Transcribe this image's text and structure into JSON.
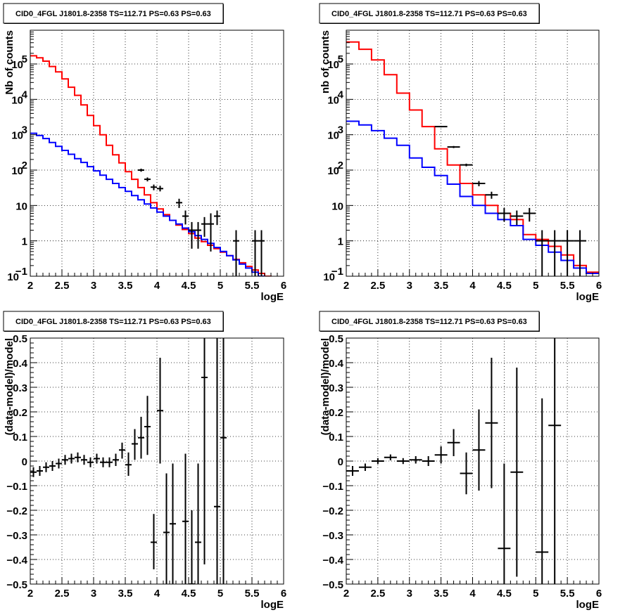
{
  "chart_data": [
    {
      "type": "line",
      "title": "CID0_4FGL J1801.8-2358 TS=112.71 PS=0.63 PS=0.63",
      "xlabel": "logE",
      "ylabel": "Nb of counts",
      "xlim": [
        2,
        6
      ],
      "ylim": [
        0.1,
        900000
      ],
      "yscale": "log",
      "grid": true,
      "xticks": [
        "2",
        "2.5",
        "3",
        "3.5",
        "4",
        "4.5",
        "5",
        "5.5",
        "6"
      ],
      "yticks": [
        {
          "v": 0.1,
          "base": "10",
          "exp": "−1"
        },
        {
          "v": 1,
          "base": "1",
          "exp": ""
        },
        {
          "v": 10,
          "base": "10",
          "exp": ""
        },
        {
          "v": 100,
          "base": "10",
          "exp": "2"
        },
        {
          "v": 1000,
          "base": "10",
          "exp": "3"
        },
        {
          "v": 10000,
          "base": "10",
          "exp": "4"
        },
        {
          "v": 100000,
          "base": "10",
          "exp": "5"
        }
      ],
      "step_series": [
        {
          "color": "#ff0000",
          "edges": [
            2.0,
            2.1,
            2.2,
            2.3,
            2.4,
            2.5,
            2.6,
            2.7,
            2.8,
            2.9,
            3.0,
            3.1,
            3.2,
            3.3,
            3.4,
            3.5,
            3.6,
            3.7,
            3.8,
            3.9,
            4.0,
            4.1,
            4.2,
            4.3,
            4.4,
            4.5,
            4.6,
            4.7,
            4.8,
            4.9,
            5.0,
            5.1,
            5.2,
            5.3,
            5.4,
            5.5,
            5.6,
            5.7,
            5.8,
            5.9,
            6.0
          ],
          "values": [
            170000,
            150000,
            120000,
            85000,
            60000,
            38000,
            22000,
            13000,
            7000,
            3500,
            1800,
            1000,
            500,
            270,
            160,
            90,
            55,
            32,
            20,
            12,
            8,
            5.5,
            3.8,
            2.8,
            2.1,
            1.6,
            1.2,
            0.95,
            0.75,
            0.6,
            0.48,
            0.38,
            0.3,
            0.24,
            0.19,
            0.15,
            0.12,
            0.1,
            0.08,
            0.06
          ]
        },
        {
          "color": "#0000ff",
          "edges": [
            2.0,
            2.1,
            2.2,
            2.3,
            2.4,
            2.5,
            2.6,
            2.7,
            2.8,
            2.9,
            3.0,
            3.1,
            3.2,
            3.3,
            3.4,
            3.5,
            3.6,
            3.7,
            3.8,
            3.9,
            4.0,
            4.1,
            4.2,
            4.3,
            4.4,
            4.5,
            4.6,
            4.7,
            4.8,
            4.9,
            5.0,
            5.1,
            5.2,
            5.3,
            5.4,
            5.5,
            5.6,
            5.7,
            5.8,
            5.9,
            6.0
          ],
          "values": [
            1100,
            950,
            780,
            600,
            470,
            360,
            280,
            210,
            165,
            125,
            95,
            72,
            55,
            42,
            32,
            25,
            19,
            14.5,
            11,
            8.5,
            6.5,
            5,
            3.8,
            3,
            2.3,
            1.8,
            1.4,
            1.1,
            0.85,
            0.65,
            0.5,
            0.38,
            0.29,
            0.22,
            0.17,
            0.13,
            0.1,
            0.08,
            0.06,
            0.05
          ]
        }
      ],
      "points": [
        {
          "x": 3.75,
          "y": 100,
          "xerr": 0.05,
          "ylo": 90,
          "yhi": 110
        },
        {
          "x": 3.85,
          "y": 55,
          "xerr": 0.05,
          "ylo": 48,
          "yhi": 62
        },
        {
          "x": 3.95,
          "y": 33,
          "xerr": 0.05,
          "ylo": 27,
          "yhi": 39
        },
        {
          "x": 4.05,
          "y": 30,
          "xerr": 0.05,
          "ylo": 25,
          "yhi": 36
        },
        {
          "x": 4.35,
          "y": 12,
          "xerr": 0.05,
          "ylo": 8.5,
          "yhi": 15.5
        },
        {
          "x": 4.45,
          "y": 5,
          "xerr": 0.05,
          "ylo": 2.9,
          "yhi": 7.2
        },
        {
          "x": 4.55,
          "y": 2,
          "xerr": 0.05,
          "ylo": 0.6,
          "yhi": 3.4
        },
        {
          "x": 4.65,
          "y": 2,
          "xerr": 0.05,
          "ylo": 0.6,
          "yhi": 3.4
        },
        {
          "x": 4.75,
          "y": 3,
          "xerr": 0.05,
          "ylo": 1.3,
          "yhi": 4.7
        },
        {
          "x": 4.85,
          "y": 3,
          "xerr": 0.05,
          "ylo": 0.5,
          "yhi": 6
        },
        {
          "x": 4.95,
          "y": 5,
          "xerr": 0.05,
          "ylo": 2.8,
          "yhi": 7.2
        },
        {
          "x": 5.25,
          "y": 1,
          "xerr": 0.05,
          "ylo": 0.1,
          "yhi": 2
        },
        {
          "x": 5.55,
          "y": 1,
          "xerr": 0.05,
          "ylo": 0.1,
          "yhi": 2
        },
        {
          "x": 5.65,
          "y": 1,
          "xerr": 0.05,
          "ylo": 0.1,
          "yhi": 2
        }
      ]
    },
    {
      "type": "line",
      "title": "CID0_4FGL J1801.8-2358 TS=112.71 PS=0.63 PS=0.63",
      "xlabel": "logE",
      "ylabel": "nb of counts",
      "xlim": [
        2,
        6
      ],
      "ylim": [
        0.1,
        900000
      ],
      "yscale": "log",
      "grid": true,
      "xticks": [
        "2",
        "2.5",
        "3",
        "3.5",
        "4",
        "4.5",
        "5",
        "5.5",
        "6"
      ],
      "yticks": [
        {
          "v": 0.1,
          "base": "10",
          "exp": "−1"
        },
        {
          "v": 1,
          "base": "1",
          "exp": ""
        },
        {
          "v": 10,
          "base": "10",
          "exp": ""
        },
        {
          "v": 100,
          "base": "10",
          "exp": "2"
        },
        {
          "v": 1000,
          "base": "10",
          "exp": "3"
        },
        {
          "v": 10000,
          "base": "10",
          "exp": "4"
        },
        {
          "v": 100000,
          "base": "10",
          "exp": "5"
        }
      ],
      "step_series": [
        {
          "color": "#ff0000",
          "edges": [
            2.0,
            2.2,
            2.4,
            2.6,
            2.8,
            3.0,
            3.2,
            3.4,
            3.6,
            3.8,
            4.0,
            4.2,
            4.4,
            4.6,
            4.8,
            5.0,
            5.2,
            5.4,
            5.6,
            5.8,
            6.0
          ],
          "values": [
            420000,
            260000,
            130000,
            50000,
            15000,
            5000,
            1700,
            400,
            140,
            42,
            20,
            10,
            6,
            4,
            1.5,
            1.1,
            0.7,
            0.4,
            0.2,
            0.13
          ]
        },
        {
          "color": "#0000ff",
          "edges": [
            2.0,
            2.2,
            2.4,
            2.6,
            2.8,
            3.0,
            3.2,
            3.4,
            3.6,
            3.8,
            4.0,
            4.2,
            4.4,
            4.6,
            4.8,
            5.0,
            5.2,
            5.4,
            5.6,
            5.8,
            6.0
          ],
          "values": [
            2400,
            1900,
            1300,
            800,
            500,
            220,
            120,
            70,
            40,
            18,
            10,
            6,
            4,
            2.7,
            1.1,
            0.75,
            0.48,
            0.28,
            0.17,
            0.12
          ]
        }
      ],
      "points": [
        {
          "x": 3.5,
          "y": 1700,
          "xerr": 0.1,
          "ylo": 1620,
          "yhi": 1780
        },
        {
          "x": 3.7,
          "y": 450,
          "xerr": 0.1,
          "ylo": 420,
          "yhi": 480
        },
        {
          "x": 3.9,
          "y": 140,
          "xerr": 0.1,
          "ylo": 128,
          "yhi": 152
        },
        {
          "x": 4.1,
          "y": 42,
          "xerr": 0.1,
          "ylo": 35,
          "yhi": 49
        },
        {
          "x": 4.3,
          "y": 20,
          "xerr": 0.1,
          "ylo": 15.5,
          "yhi": 24.5
        },
        {
          "x": 4.5,
          "y": 6,
          "xerr": 0.1,
          "ylo": 3.5,
          "yhi": 8.5
        },
        {
          "x": 4.7,
          "y": 5,
          "xerr": 0.1,
          "ylo": 2.8,
          "yhi": 7.2
        },
        {
          "x": 4.9,
          "y": 6,
          "xerr": 0.1,
          "ylo": 3.5,
          "yhi": 8.5
        },
        {
          "x": 5.1,
          "y": 1,
          "xerr": 0.1,
          "ylo": 0.1,
          "yhi": 2
        },
        {
          "x": 5.3,
          "y": 1,
          "xerr": 0.1,
          "ylo": 0.1,
          "yhi": 2
        },
        {
          "x": 5.5,
          "y": 1,
          "xerr": 0.1,
          "ylo": 0.1,
          "yhi": 2
        },
        {
          "x": 5.7,
          "y": 1,
          "xerr": 0.1,
          "ylo": 0.1,
          "yhi": 2
        }
      ]
    },
    {
      "type": "scatter",
      "title": "CID0_4FGL J1801.8-2358 TS=112.71 PS=0.63 PS=0.63",
      "xlabel": "logE",
      "ylabel": "(data-model)/model",
      "xlim": [
        2,
        6
      ],
      "ylim": [
        -0.5,
        0.5
      ],
      "grid": true,
      "xticks": [
        "2",
        "2.5",
        "3",
        "3.5",
        "4",
        "4.5",
        "5",
        "5.5",
        "6"
      ],
      "yticks": [
        "−0.5",
        "−0.4",
        "−0.3",
        "−0.2",
        "−0.1",
        "0",
        "0.1",
        "0.2",
        "0.3",
        "0.4",
        "0.5"
      ],
      "points": [
        {
          "x": 2.05,
          "y": -0.045,
          "xerr": 0.05,
          "ylo": -0.065,
          "yhi": -0.025
        },
        {
          "x": 2.15,
          "y": -0.04,
          "xerr": 0.05,
          "ylo": -0.06,
          "yhi": -0.02
        },
        {
          "x": 2.25,
          "y": -0.025,
          "xerr": 0.05,
          "ylo": -0.045,
          "yhi": -0.005
        },
        {
          "x": 2.35,
          "y": -0.02,
          "xerr": 0.05,
          "ylo": -0.04,
          "yhi": 0.0
        },
        {
          "x": 2.45,
          "y": -0.01,
          "xerr": 0.05,
          "ylo": -0.03,
          "yhi": 0.01
        },
        {
          "x": 2.55,
          "y": 0.005,
          "xerr": 0.05,
          "ylo": -0.015,
          "yhi": 0.025
        },
        {
          "x": 2.65,
          "y": 0.01,
          "xerr": 0.05,
          "ylo": -0.01,
          "yhi": 0.03
        },
        {
          "x": 2.75,
          "y": 0.015,
          "xerr": 0.05,
          "ylo": -0.005,
          "yhi": 0.035
        },
        {
          "x": 2.85,
          "y": 0.005,
          "xerr": 0.05,
          "ylo": -0.015,
          "yhi": 0.025
        },
        {
          "x": 2.95,
          "y": -0.005,
          "xerr": 0.05,
          "ylo": -0.025,
          "yhi": 0.015
        },
        {
          "x": 3.05,
          "y": 0.01,
          "xerr": 0.05,
          "ylo": -0.01,
          "yhi": 0.03
        },
        {
          "x": 3.15,
          "y": -0.005,
          "xerr": 0.05,
          "ylo": -0.025,
          "yhi": 0.015
        },
        {
          "x": 3.25,
          "y": -0.005,
          "xerr": 0.05,
          "ylo": -0.025,
          "yhi": 0.015
        },
        {
          "x": 3.35,
          "y": 0.005,
          "xerr": 0.05,
          "ylo": -0.02,
          "yhi": 0.03
        },
        {
          "x": 3.45,
          "y": 0.045,
          "xerr": 0.05,
          "ylo": 0.01,
          "yhi": 0.075
        },
        {
          "x": 3.55,
          "y": -0.015,
          "xerr": 0.05,
          "ylo": -0.06,
          "yhi": 0.035
        },
        {
          "x": 3.65,
          "y": 0.07,
          "xerr": 0.05,
          "ylo": 0.005,
          "yhi": 0.13
        },
        {
          "x": 3.75,
          "y": 0.095,
          "xerr": 0.05,
          "ylo": 0.01,
          "yhi": 0.18
        },
        {
          "x": 3.85,
          "y": 0.14,
          "xerr": 0.05,
          "ylo": 0.025,
          "yhi": 0.265
        },
        {
          "x": 3.95,
          "y": -0.33,
          "xerr": 0.05,
          "ylo": -0.44,
          "yhi": -0.215
        },
        {
          "x": 4.05,
          "y": 0.205,
          "xerr": 0.05,
          "ylo": -0.01,
          "yhi": 0.42
        },
        {
          "x": 4.15,
          "y": -0.29,
          "xerr": 0.05,
          "ylo": -0.5,
          "yhi": -0.05
        },
        {
          "x": 4.25,
          "y": -0.255,
          "xerr": 0.05,
          "ylo": -0.5,
          "yhi": -0.01
        },
        {
          "x": 4.45,
          "y": -0.245,
          "xerr": 0.05,
          "ylo": -0.5,
          "yhi": 0.03
        },
        {
          "x": 4.55,
          "y": -0.5,
          "xerr": 0.05,
          "ylo": -0.5,
          "yhi": -0.2
        },
        {
          "x": 4.65,
          "y": -0.33,
          "xerr": 0.05,
          "ylo": -0.5,
          "yhi": -0.01
        },
        {
          "x": 4.75,
          "y": 0.34,
          "xerr": 0.05,
          "ylo": -0.42,
          "yhi": 0.5
        },
        {
          "x": 4.95,
          "y": -0.185,
          "xerr": 0.05,
          "ylo": -0.5,
          "yhi": 0.5
        },
        {
          "x": 5.05,
          "y": 0.095,
          "xerr": 0.05,
          "ylo": -0.5,
          "yhi": 0.5
        }
      ]
    },
    {
      "type": "scatter",
      "title": "CID0_4FGL J1801.8-2358 TS=112.71 PS=0.63 PS=0.63",
      "xlabel": "logE",
      "ylabel": "(data-model)/model",
      "xlim": [
        2,
        6
      ],
      "ylim": [
        -0.5,
        0.5
      ],
      "grid": true,
      "xticks": [
        "2",
        "2.5",
        "3",
        "3.5",
        "4",
        "4.5",
        "5",
        "5.5",
        "6"
      ],
      "yticks": [
        "−0.5",
        "−0.4",
        "−0.3",
        "−0.2",
        "−0.1",
        "0",
        "0.1",
        "0.2",
        "0.3",
        "0.4",
        "0.5"
      ],
      "points": [
        {
          "x": 2.1,
          "y": -0.04,
          "xerr": 0.1,
          "ylo": -0.06,
          "yhi": -0.02
        },
        {
          "x": 2.3,
          "y": -0.025,
          "xerr": 0.1,
          "ylo": -0.04,
          "yhi": -0.01
        },
        {
          "x": 2.5,
          "y": 0.0,
          "xerr": 0.1,
          "ylo": -0.012,
          "yhi": 0.012
        },
        {
          "x": 2.7,
          "y": 0.015,
          "xerr": 0.1,
          "ylo": 0.003,
          "yhi": 0.027
        },
        {
          "x": 2.9,
          "y": 0.0,
          "xerr": 0.1,
          "ylo": -0.012,
          "yhi": 0.012
        },
        {
          "x": 3.1,
          "y": 0.005,
          "xerr": 0.1,
          "ylo": -0.01,
          "yhi": 0.02
        },
        {
          "x": 3.3,
          "y": 0.0,
          "xerr": 0.1,
          "ylo": -0.02,
          "yhi": 0.02
        },
        {
          "x": 3.5,
          "y": 0.025,
          "xerr": 0.1,
          "ylo": -0.01,
          "yhi": 0.06
        },
        {
          "x": 3.7,
          "y": 0.075,
          "xerr": 0.1,
          "ylo": 0.02,
          "yhi": 0.13
        },
        {
          "x": 3.9,
          "y": -0.05,
          "xerr": 0.1,
          "ylo": -0.135,
          "yhi": 0.035
        },
        {
          "x": 4.1,
          "y": 0.045,
          "xerr": 0.1,
          "ylo": -0.12,
          "yhi": 0.21
        },
        {
          "x": 4.3,
          "y": 0.155,
          "xerr": 0.1,
          "ylo": -0.11,
          "yhi": 0.42
        },
        {
          "x": 4.5,
          "y": -0.355,
          "xerr": 0.1,
          "ylo": -0.5,
          "yhi": -0.01
        },
        {
          "x": 4.7,
          "y": -0.045,
          "xerr": 0.1,
          "ylo": -0.47,
          "yhi": 0.38
        },
        {
          "x": 5.1,
          "y": -0.37,
          "xerr": 0.1,
          "ylo": -0.5,
          "yhi": 0.255
        },
        {
          "x": 5.3,
          "y": 0.145,
          "xerr": 0.1,
          "ylo": -0.5,
          "yhi": 0.5
        }
      ]
    }
  ]
}
